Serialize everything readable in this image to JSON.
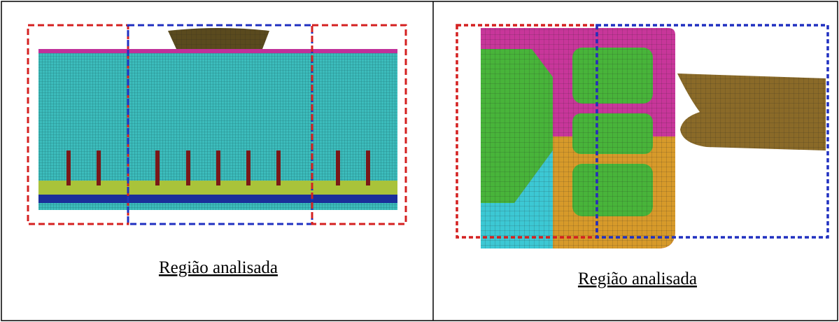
{
  "cells": [
    {
      "caption": "Região analisada"
    },
    {
      "caption": "Região analisada"
    }
  ]
}
